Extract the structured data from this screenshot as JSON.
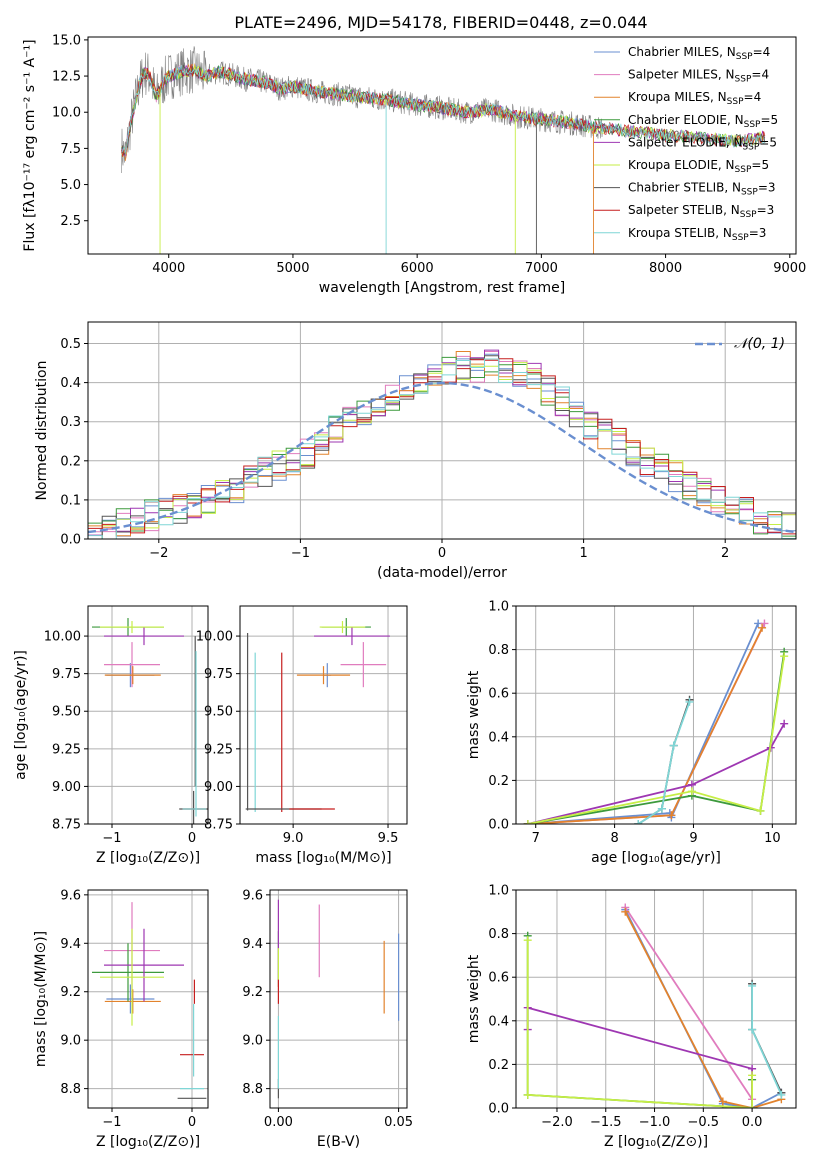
{
  "figure": {
    "title": "PLATE=2496, MJD=54178, FIBERID=0448, z=0.044"
  },
  "colors": {
    "Chabrier MILES": "#6a8fd0",
    "Salpeter MILES": "#e07cbe",
    "Kroupa MILES": "#e2832d",
    "Chabrier ELODIE": "#3d9a3d",
    "Salpeter ELODIE": "#9e37b2",
    "Kroupa ELODIE": "#c6ee46",
    "Chabrier STELIB": "#555555",
    "Salpeter STELIB": "#c61e1e",
    "Kroupa STELIB": "#7fd6d6",
    "grid": "#b0b0b0",
    "observed": "#808080"
  },
  "chart_data": [
    {
      "id": "spectrum",
      "type": "line",
      "title": "PLATE=2496, MJD=54178, FIBERID=0448, z=0.044",
      "xlabel": "wavelength [Angstrom, rest frame]",
      "ylabel": "Flux [fλ10⁻¹⁷ erg cm⁻² s⁻¹ A⁻¹]",
      "xlim": [
        3350,
        9050
      ],
      "ylim": [
        0.2,
        15.2
      ],
      "xticks": [
        4000,
        5000,
        6000,
        7000,
        8000,
        9000
      ],
      "yticks": [
        2.5,
        5.0,
        7.5,
        10.0,
        12.5,
        15.0
      ],
      "grid": false,
      "legend_position": "top-right",
      "legend": [
        {
          "model": "Chabrier MILES",
          "n_ssp": "4"
        },
        {
          "model": "Salpeter MILES",
          "n_ssp": "4"
        },
        {
          "model": "Kroupa MILES",
          "n_ssp": "4"
        },
        {
          "model": "Chabrier ELODIE",
          "n_ssp": "5"
        },
        {
          "model": "Salpeter ELODIE",
          "n_ssp": "5"
        },
        {
          "model": "Kroupa ELODIE",
          "n_ssp": "5"
        },
        {
          "model": "Chabrier STELIB",
          "n_ssp": "3"
        },
        {
          "model": "Salpeter STELIB",
          "n_ssp": "3"
        },
        {
          "model": "Kroupa STELIB",
          "n_ssp": "3"
        }
      ],
      "observed_x": [
        3620,
        3650,
        3700,
        3750,
        3800,
        3850,
        3900,
        3950,
        4000,
        4100,
        4200,
        4300,
        4400,
        4500,
        4600,
        4700,
        4800,
        4900,
        5000,
        5200,
        5400,
        5600,
        5800,
        6000,
        6200,
        6400,
        6600,
        6800,
        7000,
        7200,
        7400,
        7600,
        7800,
        8000,
        8200,
        8400,
        8600,
        8800
      ],
      "observed_y": [
        7.5,
        7.0,
        9.5,
        11.5,
        12.8,
        12.5,
        11.0,
        12.0,
        12.5,
        12.8,
        12.9,
        12.5,
        12.8,
        12.6,
        12.3,
        12.2,
        12.0,
        11.6,
        11.8,
        11.4,
        11.2,
        11.0,
        10.8,
        10.5,
        10.3,
        10.0,
        10.2,
        9.7,
        9.5,
        9.3,
        9.0,
        8.8,
        8.6,
        8.4,
        8.3,
        8.1,
        8.0,
        8.3
      ]
    },
    {
      "id": "residuals",
      "type": "histogram",
      "xlabel": "(data-model)/error",
      "ylabel": "Normed distribution",
      "xlim": [
        -2.5,
        2.5
      ],
      "ylim": [
        0,
        0.555
      ],
      "xticks": [
        -2,
        -1,
        0,
        1,
        2
      ],
      "yticks": [
        0.0,
        0.1,
        0.2,
        0.3,
        0.4,
        0.5
      ],
      "grid": true,
      "legend_position": "top-right",
      "reference_curve": "𝒩(0, 1)",
      "bin_width": 0.1,
      "bin_start": -2.5,
      "bins_mean": [
        0.02,
        0.03,
        0.04,
        0.05,
        0.06,
        0.07,
        0.08,
        0.09,
        0.1,
        0.12,
        0.13,
        0.15,
        0.17,
        0.19,
        0.2,
        0.22,
        0.25,
        0.28,
        0.3,
        0.32,
        0.34,
        0.36,
        0.38,
        0.39,
        0.41,
        0.43,
        0.44,
        0.44,
        0.45,
        0.44,
        0.43,
        0.41,
        0.38,
        0.35,
        0.32,
        0.29,
        0.27,
        0.25,
        0.22,
        0.2,
        0.18,
        0.16,
        0.14,
        0.12,
        0.1,
        0.08,
        0.07,
        0.05,
        0.04,
        0.03
      ]
    },
    {
      "id": "age-vs-Z",
      "type": "scatter",
      "xlabel": "Z [log₁₀(Z/Z⊙)]",
      "ylabel": "age  [log₁₀(age/yr)]",
      "xlim": [
        -1.3,
        0.2
      ],
      "ylim": [
        8.75,
        10.2
      ],
      "xticks": [
        -1,
        0
      ],
      "yticks": [
        8.75,
        9.0,
        9.25,
        9.5,
        9.75,
        10.0
      ],
      "grid": true,
      "points": [
        {
          "model": "Chabrier MILES",
          "x": -0.77,
          "y": 9.74,
          "xerr": 0.3,
          "yerr": 0.08
        },
        {
          "model": "Salpeter MILES",
          "x": -0.75,
          "y": 9.81,
          "xerr": 0.35,
          "yerr": 0.15
        },
        {
          "model": "Kroupa MILES",
          "x": -0.74,
          "y": 9.74,
          "xerr": 0.35,
          "yerr": 0.06
        },
        {
          "model": "Chabrier ELODIE",
          "x": -0.8,
          "y": 10.06,
          "xerr": 0.45,
          "yerr": 0.06
        },
        {
          "model": "Salpeter ELODIE",
          "x": -0.6,
          "y": 10.0,
          "xerr": 0.5,
          "yerr": 0.06
        },
        {
          "model": "Kroupa ELODIE",
          "x": -0.75,
          "y": 10.06,
          "xerr": 0.4,
          "yerr": 0.04
        },
        {
          "model": "Chabrier STELIB",
          "x": 0.02,
          "y": 8.85,
          "xerr": 0.18,
          "yerr": 0.12
        },
        {
          "model": "Salpeter STELIB",
          "x": 0.03,
          "y": 8.85,
          "xerr": 0.15,
          "yerr": 0.0
        },
        {
          "model": "Kroupa STELIB",
          "x": 0.03,
          "y": 8.85,
          "xerr": 0.15,
          "yerr": 0.0
        },
        {
          "model": "Chabrier STELIB",
          "x": 0.04,
          "y": 9.5,
          "xerr": 0.0,
          "yerr": 0.5
        },
        {
          "model": "Kroupa STELIB",
          "x": 0.05,
          "y": 9.35,
          "xerr": 0.0,
          "yerr": 0.55
        }
      ]
    },
    {
      "id": "age-vs-mass",
      "type": "scatter",
      "xlabel": "mass [log₁₀(M/M⊙)]",
      "ylabel": "",
      "xlim": [
        8.72,
        9.6
      ],
      "ylim": [
        8.75,
        10.2
      ],
      "xticks": [
        9.0,
        9.5
      ],
      "yticks": [
        8.75,
        9.0,
        9.25,
        9.5,
        9.75,
        10.0
      ],
      "grid": true,
      "points": [
        {
          "model": "Chabrier MILES",
          "x": 9.18,
          "y": 9.74,
          "xerr": 0.02,
          "yerr": 0.08
        },
        {
          "model": "Salpeter MILES",
          "x": 9.37,
          "y": 9.81,
          "xerr": 0.12,
          "yerr": 0.15
        },
        {
          "model": "Kroupa MILES",
          "x": 9.16,
          "y": 9.74,
          "xerr": 0.14,
          "yerr": 0.06
        },
        {
          "model": "Chabrier ELODIE",
          "x": 9.28,
          "y": 10.06,
          "xerr": 0.13,
          "yerr": 0.06
        },
        {
          "model": "Salpeter ELODIE",
          "x": 9.31,
          "y": 10.0,
          "xerr": 0.2,
          "yerr": 0.06
        },
        {
          "model": "Kroupa ELODIE",
          "x": 9.26,
          "y": 10.06,
          "xerr": 0.12,
          "yerr": 0.04
        },
        {
          "model": "Chabrier STELIB",
          "x": 8.76,
          "y": 9.43,
          "xerr": 0.0,
          "yerr": 0.59
        },
        {
          "model": "Salpeter STELIB",
          "x": 8.94,
          "y": 9.36,
          "xerr": 0.0,
          "yerr": 0.53
        },
        {
          "model": "Kroupa STELIB",
          "x": 8.8,
          "y": 9.36,
          "xerr": 0.0,
          "yerr": 0.53
        },
        {
          "model": "Chabrier STELIB",
          "x": 8.95,
          "y": 8.85,
          "xerr": 0.2,
          "yerr": 0.0
        },
        {
          "model": "Salpeter STELIB",
          "x": 9.1,
          "y": 8.85,
          "xerr": 0.12,
          "yerr": 0.0
        }
      ]
    },
    {
      "id": "massweight-vs-age",
      "type": "line",
      "xlabel": "age  [log₁₀(age/yr)]",
      "ylabel": "mass weight",
      "xlim": [
        6.75,
        10.3
      ],
      "ylim": [
        0,
        1
      ],
      "xticks": [
        7,
        8,
        9,
        10
      ],
      "yticks": [
        0.0,
        0.2,
        0.4,
        0.6,
        0.8,
        1.0
      ],
      "grid": true,
      "series": [
        {
          "model": "Chabrier MILES",
          "x": [
            6.9,
            8.7,
            8.72,
            9.82
          ],
          "y": [
            0.0,
            0.05,
            0.03,
            0.92
          ]
        },
        {
          "model": "Salpeter MILES",
          "x": [
            6.9,
            8.72,
            9.9
          ],
          "y": [
            0.0,
            0.04,
            0.92
          ]
        },
        {
          "model": "Kroupa MILES",
          "x": [
            6.9,
            8.72,
            9.87
          ],
          "y": [
            0.0,
            0.04,
            0.9
          ]
        },
        {
          "model": "Chabrier ELODIE",
          "x": [
            6.9,
            8.98,
            9.85,
            10.15
          ],
          "y": [
            0.0,
            0.13,
            0.06,
            0.79
          ]
        },
        {
          "model": "Salpeter ELODIE",
          "x": [
            6.9,
            8.98,
            9.98,
            10.15
          ],
          "y": [
            0.0,
            0.18,
            0.35,
            0.46
          ]
        },
        {
          "model": "Kroupa ELODIE",
          "x": [
            6.9,
            8.98,
            9.85,
            10.15
          ],
          "y": [
            0.0,
            0.15,
            0.06,
            0.77
          ]
        },
        {
          "model": "Chabrier STELIB",
          "x": [
            8.3,
            8.6,
            8.75,
            8.95
          ],
          "y": [
            0.0,
            0.07,
            0.36,
            0.57
          ]
        },
        {
          "model": "Kroupa STELIB",
          "x": [
            8.3,
            8.6,
            8.75,
            8.95
          ],
          "y": [
            0.0,
            0.07,
            0.36,
            0.56
          ]
        }
      ]
    },
    {
      "id": "mass-vs-Z",
      "type": "scatter",
      "xlabel": "Z [log₁₀(Z/Z⊙)]",
      "ylabel": "mass [log₁₀(M/M⊙)]",
      "xlim": [
        -1.3,
        0.2
      ],
      "ylim": [
        8.72,
        9.62
      ],
      "xticks": [
        -1,
        0
      ],
      "yticks": [
        8.8,
        9.0,
        9.2,
        9.4,
        9.6
      ],
      "grid": true,
      "points": [
        {
          "model": "Chabrier MILES",
          "x": -0.77,
          "y": 9.17,
          "xerr": 0.3,
          "yerr": 0.06
        },
        {
          "model": "Salpeter MILES",
          "x": -0.75,
          "y": 9.37,
          "xerr": 0.35,
          "yerr": 0.2
        },
        {
          "model": "Kroupa MILES",
          "x": -0.74,
          "y": 9.16,
          "xerr": 0.35,
          "yerr": 0.05
        },
        {
          "model": "Chabrier ELODIE",
          "x": -0.8,
          "y": 9.28,
          "xerr": 0.45,
          "yerr": 0.12
        },
        {
          "model": "Salpeter ELODIE",
          "x": -0.6,
          "y": 9.31,
          "xerr": 0.5,
          "yerr": 0.15
        },
        {
          "model": "Kroupa ELODIE",
          "x": -0.75,
          "y": 9.26,
          "xerr": 0.4,
          "yerr": 0.2
        },
        {
          "model": "Chabrier STELIB",
          "x": 0.0,
          "y": 8.76,
          "xerr": 0.18,
          "yerr": 0.0
        },
        {
          "model": "Salpeter STELIB",
          "x": 0.0,
          "y": 8.94,
          "xerr": 0.15,
          "yerr": 0.0
        },
        {
          "model": "Kroupa STELIB",
          "x": 0.0,
          "y": 8.8,
          "xerr": 0.15,
          "yerr": 0.0
        },
        {
          "model": "Salpeter STELIB",
          "x": 0.03,
          "y": 9.2,
          "xerr": 0.0,
          "yerr": 0.05
        },
        {
          "model": "Kroupa STELIB",
          "x": 0.02,
          "y": 9.0,
          "xerr": 0.0,
          "yerr": 0.15
        }
      ]
    },
    {
      "id": "mass-vs-ebv",
      "type": "scatter",
      "xlabel": "E(B-V)",
      "ylabel": "",
      "xlim": [
        -0.0035,
        0.0535
      ],
      "ylim": [
        8.72,
        9.62
      ],
      "xticks": [
        0.0,
        0.05
      ],
      "yticks": [
        8.8,
        9.0,
        9.2,
        9.4,
        9.6
      ],
      "grid": true,
      "points": [
        {
          "model": "Chabrier MILES",
          "x": 0.05,
          "y": 9.26,
          "xerr": 0.0,
          "yerr": 0.18
        },
        {
          "model": "Salpeter MILES",
          "x": 0.017,
          "y": 9.41,
          "xerr": 0.0,
          "yerr": 0.15
        },
        {
          "model": "Kroupa MILES",
          "x": 0.044,
          "y": 9.26,
          "xerr": 0.0,
          "yerr": 0.15
        },
        {
          "model": "Chabrier ELODIE",
          "x": 0.0,
          "y": 9.35,
          "xerr": 0.0,
          "yerr": 0.1
        },
        {
          "model": "Salpeter ELODIE",
          "x": 0.0,
          "y": 9.4,
          "xerr": 0.0,
          "yerr": 0.18
        },
        {
          "model": "Kroupa ELODIE",
          "x": 0.0,
          "y": 9.3,
          "xerr": 0.0,
          "yerr": 0.08
        },
        {
          "model": "Chabrier STELIB",
          "x": 0.0,
          "y": 8.8,
          "xerr": 0.0,
          "yerr": 0.04
        },
        {
          "model": "Salpeter STELIB",
          "x": 0.0,
          "y": 9.2,
          "xerr": 0.0,
          "yerr": 0.05
        },
        {
          "model": "Kroupa STELIB",
          "x": 0.0,
          "y": 8.95,
          "xerr": 0.0,
          "yerr": 0.15
        }
      ]
    },
    {
      "id": "massweight-vs-Z",
      "type": "line",
      "xlabel": "Z [log₁₀(Z/Z⊙)]",
      "ylabel": "mass weight",
      "xlim": [
        -2.42,
        0.45
      ],
      "ylim": [
        0,
        1
      ],
      "xticks": [
        -2.0,
        -1.5,
        -1.0,
        -0.5,
        0.0
      ],
      "yticks": [
        0.0,
        0.2,
        0.4,
        0.6,
        0.8,
        1.0
      ],
      "grid": true,
      "series": [
        {
          "model": "Chabrier MILES",
          "x": [
            -1.3,
            -0.3,
            0.0,
            0.3
          ],
          "y": [
            0.91,
            0.02,
            0.0,
            0.07
          ]
        },
        {
          "model": "Salpeter MILES",
          "x": [
            -1.3,
            0.0
          ],
          "y": [
            0.92,
            0.04
          ]
        },
        {
          "model": "Kroupa MILES",
          "x": [
            -1.3,
            -0.3,
            0.0,
            0.3
          ],
          "y": [
            0.9,
            0.03,
            0.0,
            0.04
          ]
        },
        {
          "model": "Chabrier ELODIE",
          "x": [
            -2.3,
            -2.3,
            0.0,
            0.0
          ],
          "y": [
            0.79,
            0.06,
            0.0,
            0.13
          ]
        },
        {
          "model": "Salpeter ELODIE",
          "x": [
            -2.3,
            -2.3,
            0.0,
            0.0
          ],
          "y": [
            0.36,
            0.46,
            0.18,
            0.0
          ]
        },
        {
          "model": "Kroupa ELODIE",
          "x": [
            -2.3,
            -2.3,
            0.0,
            0.0
          ],
          "y": [
            0.77,
            0.06,
            0.0,
            0.15
          ]
        },
        {
          "model": "Chabrier STELIB",
          "x": [
            0.0,
            0.0,
            0.3
          ],
          "y": [
            0.57,
            0.36,
            0.07
          ]
        },
        {
          "model": "Kroupa STELIB",
          "x": [
            0.0,
            0.0,
            0.3
          ],
          "y": [
            0.56,
            0.36,
            0.06
          ]
        }
      ]
    }
  ]
}
